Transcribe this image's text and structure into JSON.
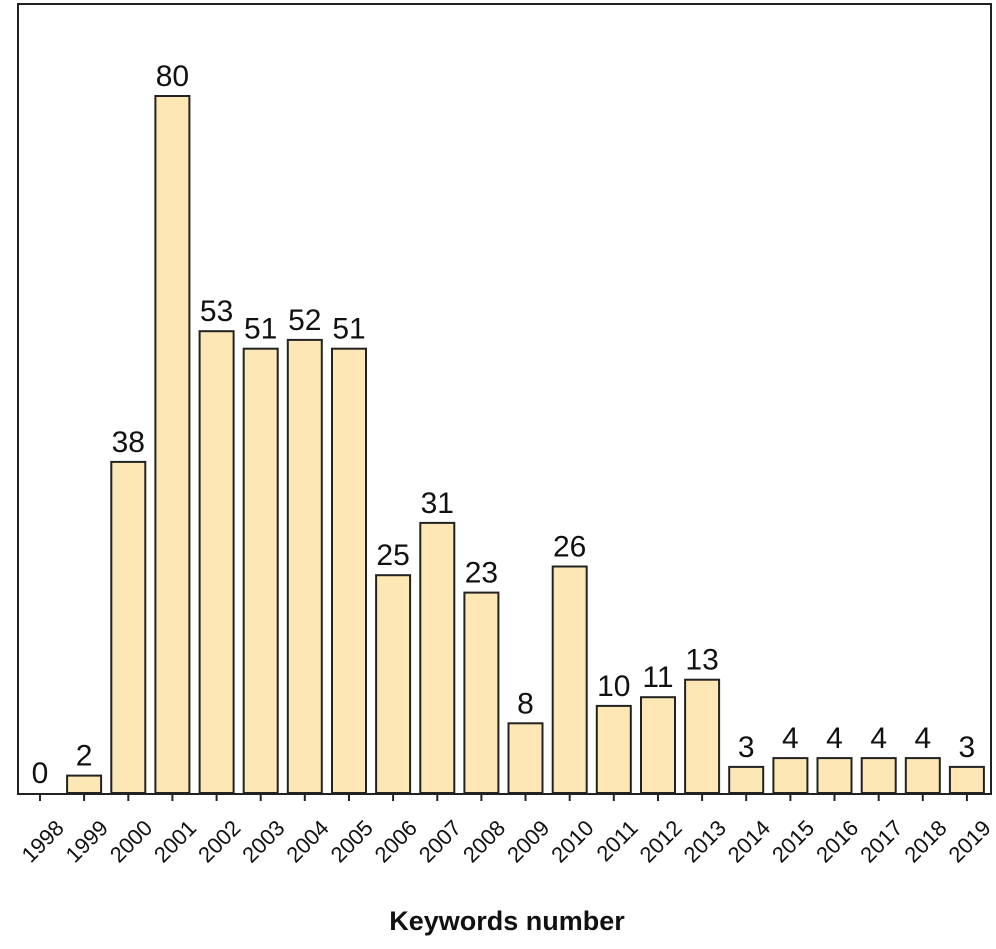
{
  "chart_data": {
    "type": "bar",
    "title": "",
    "xlabel": "Keywords number",
    "ylabel": "",
    "ylim": [
      0,
      80
    ],
    "categories": [
      "1998",
      "1999",
      "2000",
      "2001",
      "2002",
      "2003",
      "2004",
      "2005",
      "2006",
      "2007",
      "2008",
      "2009",
      "2010",
      "2011",
      "2012",
      "2013",
      "2014",
      "2015",
      "2016",
      "2017",
      "2018",
      "2019"
    ],
    "values": [
      0,
      2,
      38,
      80,
      53,
      51,
      52,
      51,
      25,
      31,
      23,
      8,
      26,
      10,
      11,
      13,
      3,
      4,
      4,
      4,
      4,
      3
    ],
    "colors": {
      "bar_fill": "#fde8b5",
      "bar_stroke": "#222222",
      "frame": "#222222"
    }
  }
}
